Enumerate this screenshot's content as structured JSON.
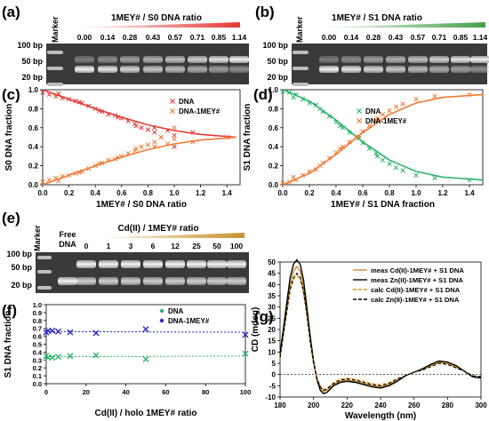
{
  "panel_a": {
    "letter": "(a)",
    "marker_label": "Marker",
    "title": "1MEY# / S0 DNA ratio",
    "ratios": [
      "0.00",
      "0.14",
      "0.28",
      "0.43",
      "0.57",
      "0.71",
      "0.85",
      "1.14"
    ],
    "size_labels": [
      "100 bp",
      "50 bp",
      "20 bp"
    ],
    "wedge_color": "#e53935"
  },
  "panel_b": {
    "letter": "(b)",
    "marker_label": "Marker",
    "title": "1MEY# / S1 DNA ratio",
    "ratios": [
      "0.00",
      "0.14",
      "0.28",
      "0.43",
      "0.57",
      "0.71",
      "0.85",
      "1.14"
    ],
    "size_labels": [
      "100 bp",
      "50 bp",
      "20 bp"
    ],
    "wedge_color": "#43a047"
  },
  "panel_e": {
    "letter": "(e)",
    "marker_label": "Marker",
    "free_label_1": "Free",
    "free_label_2": "DNA",
    "title": "Cd(II) / 1MEY# ratio",
    "ratios": [
      "0",
      "1",
      "3",
      "6",
      "12",
      "25",
      "50",
      "100"
    ],
    "size_labels": [
      "100 bp",
      "50 bp",
      "20 bp"
    ],
    "wedge_color": "#c8922f"
  },
  "chart_data": [
    {
      "id": "c",
      "letter": "(c)",
      "type": "scatter",
      "xlabel": "1MEY# / S0 DNA ratio",
      "ylabel": "S0 DNA fraction",
      "xlim": [
        0,
        1.5
      ],
      "ylim": [
        0,
        1.0
      ],
      "xticks": [
        "0.0",
        "0.2",
        "0.4",
        "0.6",
        "0.8",
        "1.0",
        "1.2",
        "1.4"
      ],
      "yticks": [
        "0.0",
        "0.2",
        "0.4",
        "0.6",
        "0.8",
        "1.0"
      ],
      "legend_position": "top-right",
      "series": [
        {
          "name": "DNA",
          "color": "#e53935",
          "marker": "x",
          "x": [
            0.0,
            0.05,
            0.1,
            0.12,
            0.15,
            0.2,
            0.25,
            0.28,
            0.3,
            0.35,
            0.4,
            0.43,
            0.45,
            0.5,
            0.55,
            0.57,
            0.6,
            0.65,
            0.7,
            0.71,
            0.75,
            0.8,
            0.85,
            0.85,
            0.9,
            0.95,
            1.0,
            1.0,
            1.14,
            1.4
          ],
          "y": [
            0.97,
            0.95,
            0.93,
            0.96,
            0.91,
            0.9,
            0.88,
            0.87,
            0.86,
            0.83,
            0.8,
            0.78,
            0.77,
            0.74,
            0.73,
            0.71,
            0.7,
            0.67,
            0.64,
            0.62,
            0.6,
            0.58,
            0.55,
            0.6,
            0.5,
            0.57,
            0.52,
            0.4,
            0.55,
            0.5
          ],
          "fit_x": [
            0.0,
            0.2,
            0.4,
            0.6,
            0.8,
            1.0,
            1.2,
            1.47
          ],
          "fit_y": [
            1.0,
            0.9,
            0.8,
            0.71,
            0.63,
            0.57,
            0.53,
            0.5
          ]
        },
        {
          "name": "DNA-1MEY#",
          "color": "#f07a34",
          "marker": "x",
          "x": [
            0.0,
            0.05,
            0.1,
            0.12,
            0.15,
            0.2,
            0.25,
            0.28,
            0.3,
            0.35,
            0.4,
            0.43,
            0.45,
            0.5,
            0.55,
            0.57,
            0.6,
            0.65,
            0.7,
            0.71,
            0.75,
            0.8,
            0.85,
            0.85,
            0.9,
            0.95,
            1.0,
            1.0,
            1.14,
            1.4
          ],
          "y": [
            0.03,
            0.05,
            0.07,
            0.04,
            0.09,
            0.1,
            0.12,
            0.13,
            0.14,
            0.17,
            0.2,
            0.22,
            0.23,
            0.26,
            0.27,
            0.29,
            0.3,
            0.33,
            0.36,
            0.38,
            0.4,
            0.42,
            0.45,
            0.4,
            0.5,
            0.43,
            0.48,
            0.6,
            0.45,
            0.5
          ],
          "fit_x": [
            0.0,
            0.2,
            0.4,
            0.6,
            0.8,
            1.0,
            1.2,
            1.47
          ],
          "fit_y": [
            0.0,
            0.1,
            0.2,
            0.29,
            0.37,
            0.43,
            0.47,
            0.5
          ]
        }
      ]
    },
    {
      "id": "d",
      "letter": "(d)",
      "type": "scatter",
      "xlabel": "1MEY# / S1 DNA fraction",
      "ylabel": "S1 DNA fraction",
      "xlim": [
        0,
        1.5
      ],
      "ylim": [
        0,
        1.0
      ],
      "xticks": [
        "0.0",
        "0.2",
        "0.4",
        "0.6",
        "0.8",
        "1.0",
        "1.2",
        "1.4"
      ],
      "yticks": [
        "0.0",
        "0.2",
        "0.4",
        "0.6",
        "0.8",
        "1.0"
      ],
      "legend_position": "middle-right",
      "series": [
        {
          "name": "DNA",
          "color": "#2db36b",
          "marker": "x",
          "x": [
            0.0,
            0.05,
            0.08,
            0.1,
            0.15,
            0.2,
            0.25,
            0.28,
            0.3,
            0.35,
            0.4,
            0.43,
            0.45,
            0.5,
            0.55,
            0.57,
            0.6,
            0.65,
            0.7,
            0.71,
            0.75,
            0.8,
            0.85,
            0.9,
            1.0,
            1.14,
            1.4
          ],
          "y": [
            0.98,
            0.97,
            0.92,
            0.95,
            0.9,
            0.86,
            0.84,
            0.8,
            0.77,
            0.72,
            0.66,
            0.62,
            0.6,
            0.55,
            0.5,
            0.49,
            0.44,
            0.38,
            0.33,
            0.3,
            0.26,
            0.22,
            0.18,
            0.15,
            0.1,
            0.07,
            0.05
          ],
          "fit_x": [
            0.0,
            0.2,
            0.4,
            0.6,
            0.8,
            1.0,
            1.2,
            1.5
          ],
          "fit_y": [
            1.0,
            0.88,
            0.68,
            0.45,
            0.26,
            0.14,
            0.08,
            0.05
          ]
        },
        {
          "name": "DNA-1MEY#",
          "color": "#f07a34",
          "marker": "x",
          "x": [
            0.0,
            0.05,
            0.08,
            0.1,
            0.15,
            0.2,
            0.25,
            0.28,
            0.3,
            0.35,
            0.4,
            0.43,
            0.45,
            0.5,
            0.55,
            0.57,
            0.6,
            0.65,
            0.7,
            0.71,
            0.75,
            0.8,
            0.85,
            0.9,
            1.0,
            1.14,
            1.4
          ],
          "y": [
            0.02,
            0.03,
            0.08,
            0.05,
            0.1,
            0.14,
            0.16,
            0.2,
            0.23,
            0.28,
            0.34,
            0.38,
            0.4,
            0.45,
            0.5,
            0.51,
            0.56,
            0.62,
            0.67,
            0.7,
            0.74,
            0.78,
            0.82,
            0.85,
            0.9,
            0.93,
            0.95
          ],
          "fit_x": [
            0.0,
            0.2,
            0.4,
            0.6,
            0.8,
            1.0,
            1.2,
            1.5
          ],
          "fit_y": [
            0.0,
            0.12,
            0.32,
            0.55,
            0.74,
            0.86,
            0.92,
            0.95
          ]
        }
      ]
    },
    {
      "id": "f",
      "letter": "(f)",
      "type": "scatter",
      "xlabel": "Cd(II) / holo 1MEY# ratio",
      "ylabel": "S1 DNA fraction",
      "xlim": [
        0,
        100
      ],
      "ylim": [
        0,
        1.0
      ],
      "xticks": [
        "0",
        "20",
        "40",
        "60",
        "80",
        "100"
      ],
      "yticks": [
        "0.0",
        "0.1",
        "0.2",
        "0.3",
        "0.4",
        "0.5",
        "0.6",
        "0.7",
        "0.8",
        "0.9",
        "1.0"
      ],
      "legend_position": "top-right",
      "series": [
        {
          "name": "DNA",
          "color": "#2db36b",
          "marker": "x",
          "x": [
            0,
            1,
            3,
            6,
            12,
            25,
            50,
            100
          ],
          "y": [
            0.35,
            0.33,
            0.33,
            0.34,
            0.35,
            0.36,
            0.31,
            0.38
          ],
          "fit_x": [
            0,
            100
          ],
          "fit_y": [
            0.34,
            0.35
          ]
        },
        {
          "name": "DNA-1MEY#",
          "color": "#2828c8",
          "marker": "x",
          "x": [
            0,
            1,
            3,
            6,
            12,
            25,
            50,
            100
          ],
          "y": [
            0.65,
            0.67,
            0.67,
            0.66,
            0.65,
            0.64,
            0.69,
            0.62
          ],
          "fit_x": [
            0,
            100
          ],
          "fit_y": [
            0.66,
            0.65
          ]
        }
      ]
    },
    {
      "id": "g",
      "letter": "(g)",
      "type": "line",
      "xlabel": "Wavelength (nm)",
      "ylabel": "CD (mdeg)",
      "xlim": [
        180,
        300
      ],
      "ylim": [
        -10,
        50
      ],
      "xticks": [
        "180",
        "200",
        "220",
        "240",
        "260",
        "280",
        "300"
      ],
      "yticks": [
        "-10",
        "-5",
        "0",
        "5",
        "10",
        "15",
        "20",
        "25",
        "30",
        "35",
        "40",
        "45",
        "50"
      ],
      "legend_position": "top-right",
      "series": [
        {
          "name": "meas Cd(II)-1MEY# + S1 DNA",
          "color": "#c8922f",
          "dash": "solid",
          "x": [
            180,
            183,
            186,
            188,
            190,
            192,
            194,
            196,
            198,
            200,
            202,
            204,
            206,
            208,
            212,
            216,
            220,
            225,
            230,
            235,
            240,
            245,
            250,
            255,
            260,
            265,
            270,
            275,
            280,
            285,
            290,
            295,
            300
          ],
          "y": [
            8,
            24,
            40,
            46,
            48,
            46,
            39,
            28,
            15,
            5,
            -2,
            -6,
            -7.5,
            -7,
            -4.5,
            -3,
            -2.5,
            -3,
            -4,
            -5,
            -5.5,
            -4.5,
            -2.5,
            -0.5,
            1,
            2.5,
            4,
            5.5,
            5,
            3.5,
            1.5,
            -1,
            -1.5
          ]
        },
        {
          "name": "meas Zn(II)-1MEY# + S1 DNA",
          "color": "#000000",
          "dash": "solid",
          "x": [
            180,
            183,
            186,
            188,
            190,
            192,
            194,
            196,
            198,
            200,
            202,
            204,
            206,
            208,
            212,
            216,
            220,
            225,
            230,
            235,
            240,
            245,
            250,
            255,
            260,
            265,
            270,
            275,
            280,
            285,
            290,
            295,
            300
          ],
          "y": [
            9,
            26,
            43,
            49,
            51,
            49,
            42,
            30,
            17,
            6,
            -2,
            -7,
            -8.5,
            -8,
            -5,
            -3.5,
            -3,
            -3.5,
            -4.5,
            -5.5,
            -6,
            -5,
            -3,
            -0.5,
            1,
            2.5,
            4.5,
            6,
            5.5,
            4,
            1.5,
            -1,
            -1.5
          ]
        },
        {
          "name": "calc Cd(II)-1MEY# + S1 DNA",
          "color": "#e8972e",
          "dash": "dashed",
          "x": [
            180,
            183,
            186,
            188,
            190,
            192,
            194,
            196,
            198,
            200,
            202,
            204,
            206,
            208,
            212,
            216,
            220,
            225,
            230,
            235,
            240,
            245,
            250,
            255,
            260,
            265,
            270,
            275,
            280,
            285,
            290,
            295,
            300
          ],
          "y": [
            7,
            22,
            37,
            42,
            44,
            42,
            36,
            26,
            14,
            5,
            -1.5,
            -5,
            -6.5,
            -6,
            -3.5,
            -2,
            -1.5,
            -2,
            -3,
            -4,
            -4.5,
            -3.5,
            -2,
            -0.5,
            1,
            2,
            3.5,
            5,
            4.5,
            3,
            1.5,
            -0.5,
            -1
          ]
        },
        {
          "name": "calc Zn(II)-1MEY# + S1 DNA",
          "color": "#000000",
          "dash": "dashed",
          "x": [
            180,
            183,
            186,
            188,
            190,
            192,
            194,
            196,
            198,
            200,
            202,
            204,
            206,
            208,
            212,
            216,
            220,
            225,
            230,
            235,
            240,
            245,
            250,
            255,
            260,
            265,
            270,
            275,
            280,
            285,
            290,
            295,
            300
          ],
          "y": [
            7.5,
            23,
            38,
            43,
            45,
            43,
            37,
            27,
            14.5,
            5,
            -1.5,
            -5.5,
            -7,
            -6.5,
            -4,
            -2.5,
            -2,
            -2.5,
            -3.5,
            -4.5,
            -5,
            -4,
            -2,
            -0.5,
            1,
            2,
            3.5,
            5,
            4.5,
            3,
            1.5,
            -0.5,
            -1
          ]
        }
      ]
    }
  ]
}
